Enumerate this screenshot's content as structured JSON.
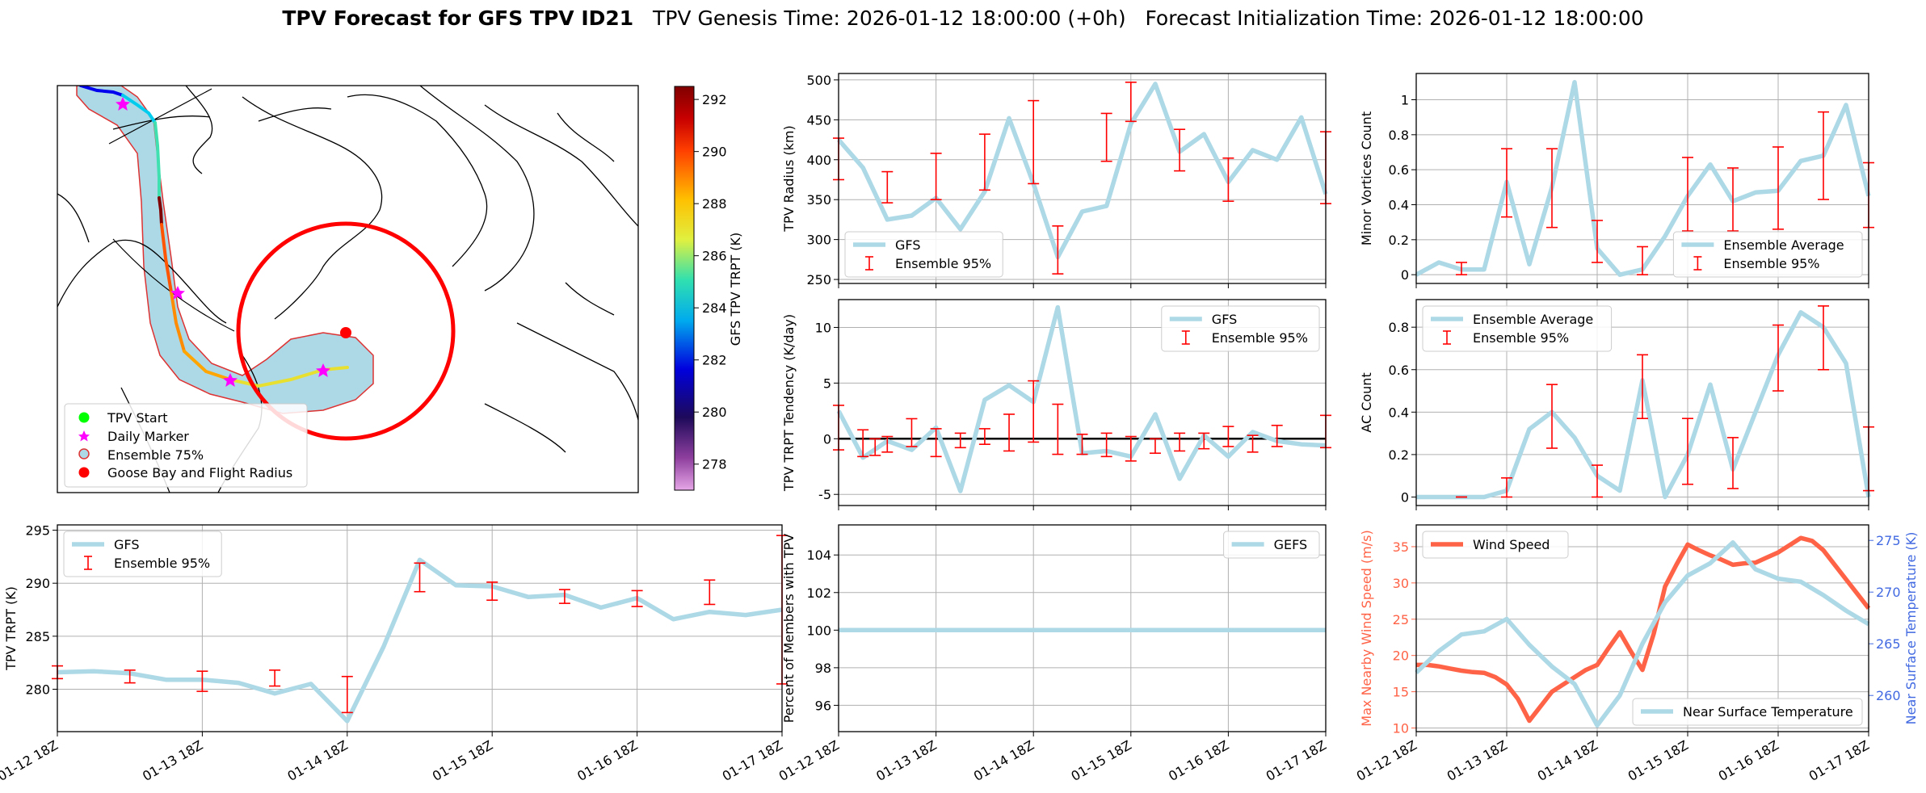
{
  "title": {
    "bold": "TPV Forecast for GFS TPV ID21",
    "genesis": "TPV Genesis Time: 2026-01-12 18:00:00 (+0h)",
    "init": "Forecast Initialization Time: 2026-01-12 18:00:00"
  },
  "colors": {
    "gfs": "#add8e6",
    "ensemble": "#ff0000",
    "wind": "#ff6347",
    "temp_axis": "#4169e1",
    "zero_line": "#000000",
    "grid": "#b0b0b0",
    "track_fill": "#add8e6",
    "flight_radius": "#ff0000"
  },
  "map": {
    "legend": [
      "TPV Start",
      "Daily Marker",
      "Ensemble 75%",
      "Goose Bay and Flight Radius"
    ],
    "colorbar": {
      "label": "GFS TPV TRPT (K)",
      "ticks": [
        278,
        280,
        282,
        284,
        286,
        288,
        290,
        292
      ],
      "min": 277,
      "max": 292.5
    }
  },
  "time_ticks": [
    "01-12 18Z",
    "01-13 18Z",
    "01-14 18Z",
    "01-15 18Z",
    "01-16 18Z",
    "01-17 18Z"
  ],
  "chart_data": [
    {
      "id": "trpt",
      "type": "line",
      "ylabel": "TPV TRPT (K)",
      "ylim": [
        276,
        295.5
      ],
      "yticks": [
        280,
        285,
        290,
        295
      ],
      "xlim": [
        0,
        120
      ],
      "legend": [
        "GFS",
        "Ensemble 95%"
      ],
      "legend_pos": "top-left",
      "series": [
        {
          "name": "GFS",
          "x": [
            0,
            6,
            12,
            18,
            24,
            30,
            36,
            42,
            48,
            54,
            60,
            66,
            72,
            78,
            84,
            90,
            96,
            102,
            108,
            114,
            120
          ],
          "y": [
            281.6,
            281.7,
            281.5,
            280.9,
            280.9,
            280.6,
            279.6,
            280.5,
            277,
            284,
            292.2,
            289.8,
            289.7,
            288.7,
            288.9,
            287.7,
            288.6,
            286.6,
            287.3,
            287,
            287.5
          ]
        }
      ],
      "errorbars": [
        {
          "x": 0,
          "lo": 281,
          "hi": 282.2
        },
        {
          "x": 12,
          "lo": 280.6,
          "hi": 281.8
        },
        {
          "x": 24,
          "lo": 279.8,
          "hi": 281.7
        },
        {
          "x": 36,
          "lo": 280.3,
          "hi": 281.8
        },
        {
          "x": 48,
          "lo": 277.8,
          "hi": 281.2
        },
        {
          "x": 60,
          "lo": 289.2,
          "hi": 291.9
        },
        {
          "x": 72,
          "lo": 288.4,
          "hi": 290.1
        },
        {
          "x": 84,
          "lo": 288.1,
          "hi": 289.4
        },
        {
          "x": 96,
          "lo": 287.8,
          "hi": 289.3
        },
        {
          "x": 108,
          "lo": 288,
          "hi": 290.3
        },
        {
          "x": 120,
          "lo": 280.5,
          "hi": 294.5
        }
      ]
    },
    {
      "id": "radius",
      "type": "line",
      "ylabel": "TPV Radius (km)",
      "ylim": [
        245,
        508
      ],
      "yticks": [
        250,
        300,
        350,
        400,
        450,
        500
      ],
      "xlim": [
        0,
        120
      ],
      "legend": [
        "GFS",
        "Ensemble 95%"
      ],
      "legend_pos": "bottom-left",
      "series": [
        {
          "name": "GFS",
          "x": [
            0,
            6,
            12,
            18,
            24,
            30,
            36,
            42,
            48,
            54,
            60,
            66,
            72,
            78,
            84,
            90,
            96,
            102,
            108,
            114,
            120
          ],
          "y": [
            425,
            390,
            325,
            330,
            352,
            313,
            360,
            452,
            370,
            278,
            335,
            342,
            445,
            495,
            410,
            432,
            372,
            412,
            400,
            453,
            357
          ]
        }
      ],
      "errorbars": [
        {
          "x": 0,
          "lo": 375,
          "hi": 427
        },
        {
          "x": 12,
          "lo": 346,
          "hi": 385
        },
        {
          "x": 24,
          "lo": 350,
          "hi": 408
        },
        {
          "x": 36,
          "lo": 362,
          "hi": 432
        },
        {
          "x": 48,
          "lo": 370,
          "hi": 474
        },
        {
          "x": 54,
          "lo": 257,
          "hi": 317
        },
        {
          "x": 66,
          "lo": 398,
          "hi": 458
        },
        {
          "x": 72,
          "lo": 448,
          "hi": 497
        },
        {
          "x": 84,
          "lo": 386,
          "hi": 438
        },
        {
          "x": 96,
          "lo": 348,
          "hi": 402
        },
        {
          "x": 120,
          "lo": 345,
          "hi": 435
        }
      ]
    },
    {
      "id": "tendency",
      "type": "line",
      "ylabel": "TPV TRPT Tendency (K/day)",
      "ylim": [
        -6,
        12.5
      ],
      "yticks": [
        -5,
        0,
        5,
        10
      ],
      "xlim": [
        0,
        120
      ],
      "zero_line": true,
      "legend": [
        "GFS",
        "Ensemble 95%"
      ],
      "legend_pos": "top-right",
      "series": [
        {
          "name": "GFS",
          "x": [
            0,
            6,
            12,
            18,
            24,
            30,
            36,
            42,
            48,
            54,
            60,
            66,
            72,
            78,
            84,
            90,
            96,
            102,
            108,
            114,
            120
          ],
          "y": [
            2.5,
            -1.7,
            -0.2,
            -1,
            1,
            -4.7,
            3.5,
            4.8,
            3.3,
            11.8,
            -1.3,
            -1.1,
            -1.6,
            2.2,
            -3.6,
            0.3,
            -1.6,
            0.6,
            -0.2,
            -0.5,
            -0.6
          ]
        }
      ],
      "errorbars": [
        {
          "x": 0,
          "lo": -1,
          "hi": 3
        },
        {
          "x": 6,
          "lo": -1.6,
          "hi": 0.8
        },
        {
          "x": 9,
          "lo": -1.5,
          "hi": 0
        },
        {
          "x": 12,
          "lo": -1.2,
          "hi": 0.2
        },
        {
          "x": 18,
          "lo": -0.7,
          "hi": 1.8
        },
        {
          "x": 24,
          "lo": -1.6,
          "hi": 0.9
        },
        {
          "x": 30,
          "lo": -0.8,
          "hi": 0.5
        },
        {
          "x": 36,
          "lo": -0.5,
          "hi": 0.9
        },
        {
          "x": 42,
          "lo": -1.1,
          "hi": 2.2
        },
        {
          "x": 48,
          "lo": -0.3,
          "hi": 5.2
        },
        {
          "x": 54,
          "lo": -1.4,
          "hi": 3.1
        },
        {
          "x": 60,
          "lo": -1.4,
          "hi": 0.4
        },
        {
          "x": 66,
          "lo": -1.6,
          "hi": 0.5
        },
        {
          "x": 72,
          "lo": -2,
          "hi": 0.2
        },
        {
          "x": 78,
          "lo": -1.3,
          "hi": 0
        },
        {
          "x": 84,
          "lo": -1.1,
          "hi": 0.5
        },
        {
          "x": 90,
          "lo": -0.9,
          "hi": 0.5
        },
        {
          "x": 96,
          "lo": -0.7,
          "hi": 1.1
        },
        {
          "x": 102,
          "lo": -1.2,
          "hi": 0.3
        },
        {
          "x": 108,
          "lo": -0.7,
          "hi": 1.2
        },
        {
          "x": 120,
          "lo": -0.8,
          "hi": 2.1
        }
      ]
    },
    {
      "id": "members",
      "type": "line",
      "ylabel": "Percent of Members with TPV",
      "ylim": [
        94.6,
        105.6
      ],
      "yticks": [
        96,
        98,
        100,
        102,
        104
      ],
      "xlim": [
        0,
        120
      ],
      "legend": [
        "GEFS"
      ],
      "legend_pos": "top-right",
      "series": [
        {
          "name": "GEFS",
          "x": [
            0,
            120
          ],
          "y": [
            100,
            100
          ]
        }
      ],
      "errorbars": []
    },
    {
      "id": "minor",
      "type": "line",
      "ylabel": "Minor Vortices Count",
      "ylim": [
        -0.05,
        1.15
      ],
      "yticks": [
        0.0,
        0.2,
        0.4,
        0.6,
        0.8,
        1.0
      ],
      "xlim": [
        0,
        120
      ],
      "legend": [
        "Ensemble Average",
        "Ensemble 95%"
      ],
      "legend_pos": "bottom-right",
      "series": [
        {
          "name": "Ensemble Average",
          "x": [
            0,
            6,
            12,
            18,
            24,
            30,
            36,
            42,
            48,
            54,
            60,
            66,
            72,
            78,
            84,
            90,
            96,
            102,
            108,
            114,
            120
          ],
          "y": [
            0,
            0.07,
            0.03,
            0.03,
            0.53,
            0.06,
            0.5,
            1.1,
            0.15,
            0,
            0.03,
            0.22,
            0.45,
            0.63,
            0.42,
            0.47,
            0.48,
            0.65,
            0.68,
            0.97,
            0.45
          ]
        }
      ],
      "errorbars": [
        {
          "x": 12,
          "lo": 0,
          "hi": 0.07
        },
        {
          "x": 24,
          "lo": 0.33,
          "hi": 0.72
        },
        {
          "x": 36,
          "lo": 0.27,
          "hi": 0.72
        },
        {
          "x": 48,
          "lo": 0.07,
          "hi": 0.31
        },
        {
          "x": 60,
          "lo": 0,
          "hi": 0.16
        },
        {
          "x": 72,
          "lo": 0.25,
          "hi": 0.67
        },
        {
          "x": 84,
          "lo": 0.25,
          "hi": 0.61
        },
        {
          "x": 96,
          "lo": 0.26,
          "hi": 0.73
        },
        {
          "x": 108,
          "lo": 0.43,
          "hi": 0.93
        },
        {
          "x": 120,
          "lo": 0.27,
          "hi": 0.64
        }
      ]
    },
    {
      "id": "ac",
      "type": "line",
      "ylabel": "AC Count",
      "ylim": [
        -0.04,
        0.93
      ],
      "yticks": [
        0.0,
        0.2,
        0.4,
        0.6,
        0.8
      ],
      "xlim": [
        0,
        120
      ],
      "legend": [
        "Ensemble Average",
        "Ensemble 95%"
      ],
      "legend_pos": "top-left",
      "series": [
        {
          "name": "Ensemble Average",
          "x": [
            0,
            6,
            12,
            18,
            24,
            30,
            36,
            42,
            48,
            54,
            60,
            66,
            72,
            78,
            84,
            90,
            96,
            102,
            108,
            114,
            120
          ],
          "y": [
            0,
            0,
            0,
            0,
            0.03,
            0.32,
            0.4,
            0.28,
            0.1,
            0.03,
            0.55,
            0,
            0.2,
            0.53,
            0.13,
            0.4,
            0.67,
            0.87,
            0.8,
            0.63,
            0
          ]
        }
      ],
      "errorbars": [
        {
          "x": 12,
          "lo": 0,
          "hi": 0
        },
        {
          "x": 24,
          "lo": 0,
          "hi": 0.09
        },
        {
          "x": 36,
          "lo": 0.23,
          "hi": 0.53
        },
        {
          "x": 48,
          "lo": 0,
          "hi": 0.15
        },
        {
          "x": 60,
          "lo": 0.37,
          "hi": 0.67
        },
        {
          "x": 72,
          "lo": 0.06,
          "hi": 0.37
        },
        {
          "x": 84,
          "lo": 0.04,
          "hi": 0.28
        },
        {
          "x": 96,
          "lo": 0.5,
          "hi": 0.81
        },
        {
          "x": 108,
          "lo": 0.6,
          "hi": 0.9
        },
        {
          "x": 120,
          "lo": 0.03,
          "hi": 0.33
        }
      ]
    },
    {
      "id": "wind_temp",
      "type": "line",
      "ylabel": "Max Nearby Wind Speed (m/s)",
      "ylabel_right": "Near Surface Temperature (K)",
      "ylim": [
        9.5,
        38
      ],
      "yticks": [
        10,
        15,
        20,
        25,
        30,
        35
      ],
      "ylim_right": [
        256.5,
        276.5
      ],
      "yticks_right": [
        260,
        265,
        270,
        275
      ],
      "xlim": [
        0,
        120
      ],
      "legend": [
        "Wind Speed",
        "Near Surface Temperature"
      ],
      "series": [
        {
          "name": "Wind Speed",
          "axis": "left",
          "x": [
            0,
            3,
            6,
            9,
            12,
            15,
            18,
            21,
            24,
            27,
            30,
            33,
            36,
            39,
            42,
            45,
            48,
            51,
            54,
            57,
            60,
            63,
            66,
            69,
            72,
            75,
            78,
            81,
            84,
            87,
            90,
            93,
            96,
            99,
            102,
            105,
            108,
            111,
            114,
            117,
            120
          ],
          "y": [
            18.7,
            18.7,
            18.5,
            18.2,
            17.9,
            17.7,
            17.6,
            17,
            16,
            14,
            11,
            13,
            15,
            16,
            17,
            18,
            18.7,
            21,
            23.2,
            20.5,
            18,
            23,
            29.5,
            32.5,
            35.3,
            34.5,
            33.8,
            33.2,
            32.5,
            32.7,
            32.8,
            33.5,
            34.2,
            35.2,
            36.2,
            35.8,
            34.5,
            32.5,
            30.5,
            28.5,
            26.5
          ]
        },
        {
          "name": "Near Surface Temperature",
          "axis": "right",
          "x": [
            0,
            6,
            12,
            18,
            24,
            30,
            36,
            42,
            48,
            54,
            60,
            66,
            72,
            78,
            84,
            90,
            96,
            102,
            108,
            114,
            120
          ],
          "y": [
            262.2,
            264.3,
            265.9,
            266.2,
            267.4,
            264.9,
            262.8,
            261.1,
            257.1,
            260,
            265,
            269,
            271.6,
            272.8,
            274.8,
            272.2,
            271.3,
            271,
            269.7,
            268.2,
            266.9
          ]
        }
      ],
      "errorbars": []
    }
  ]
}
